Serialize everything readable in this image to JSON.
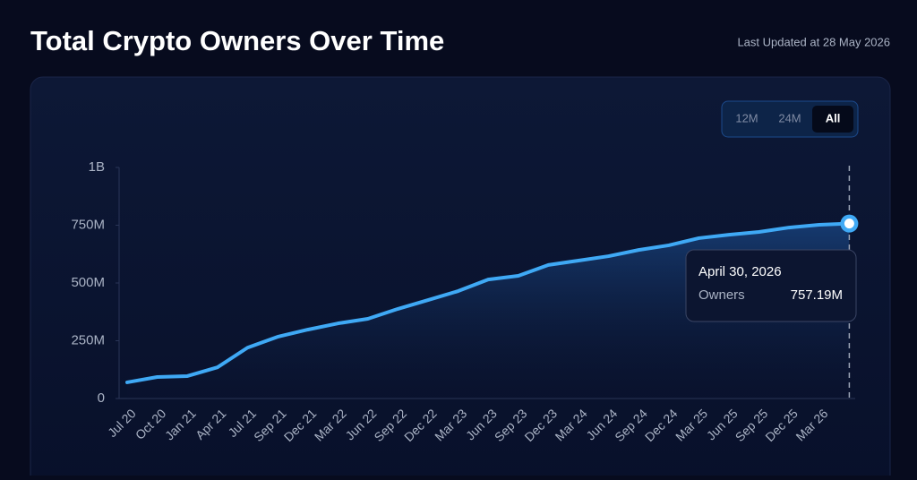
{
  "header": {
    "title": "Total Crypto Owners Over Time",
    "updated": "Last Updated at 28 May 2026"
  },
  "range_buttons": [
    "12M",
    "24M",
    "All"
  ],
  "active_range": "All",
  "chart_data": {
    "type": "area",
    "categories": [
      "Jul 20",
      "Oct 20",
      "Jan 21",
      "Apr 21",
      "Jul 21",
      "Sep 21",
      "Dec 21",
      "Mar 22",
      "Jun 22",
      "Sep 22",
      "Dec 22",
      "Mar 23",
      "Jun 23",
      "Sep 23",
      "Dec 23",
      "Mar 24",
      "Jun 24",
      "Sep 24",
      "Dec 24",
      "Mar 25",
      "Jun 25",
      "Sep 25",
      "Dec 25",
      "Mar 26",
      null
    ],
    "series": [
      {
        "name": "Owners",
        "color": "#3fa9f5",
        "values": [
          70,
          93,
          97,
          135,
          220,
          267,
          298,
          325,
          345,
          388,
          426,
          465,
          515,
          531,
          578,
          597,
          616,
          643,
          663,
          694,
          709,
          721,
          740,
          752,
          757.19
        ]
      }
    ],
    "ylim": [
      0,
      1000
    ],
    "yticks": [
      {
        "value": 0,
        "label": "0"
      },
      {
        "value": 250,
        "label": "250M"
      },
      {
        "value": 500,
        "label": "500M"
      },
      {
        "value": 750,
        "label": "750M"
      },
      {
        "value": 1000,
        "label": "1B"
      }
    ],
    "tooltip": {
      "date": "April 30, 2026",
      "value": "757.19M"
    }
  }
}
